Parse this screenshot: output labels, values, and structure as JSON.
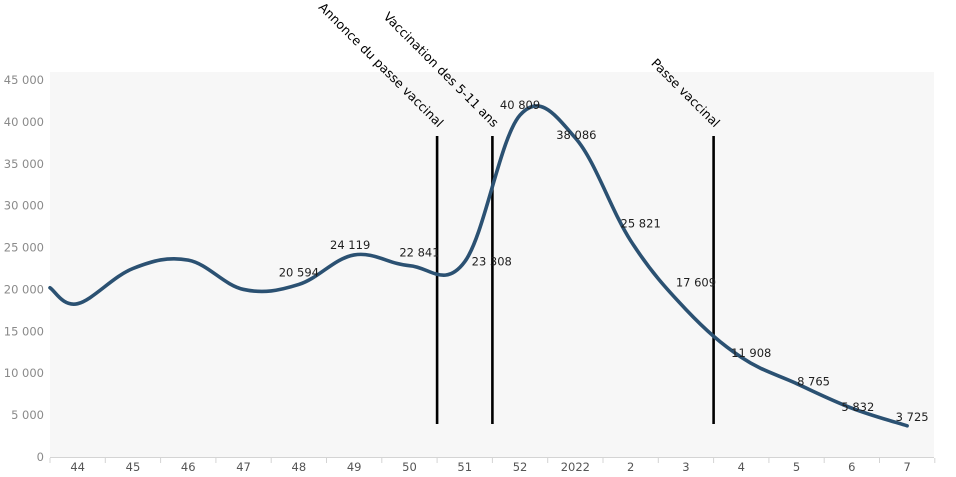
{
  "chart_data": {
    "type": "line",
    "title": "",
    "xlabel": "",
    "ylabel": "",
    "categories": [
      "44",
      "45",
      "46",
      "47",
      "48",
      "49",
      "50",
      "51",
      "52",
      "2022",
      "2",
      "3",
      "4",
      "5",
      "6",
      "7"
    ],
    "y_ticks": [
      "0",
      "5 000",
      "10 000",
      "15 000",
      "20 000",
      "25 000",
      "30 000",
      "35 000",
      "40 000",
      "45 000"
    ],
    "ylim": [
      0,
      45000
    ],
    "grid": false,
    "legend": "none",
    "line_color": "#2b5172",
    "series": [
      {
        "points": [
          {
            "x": 43.5,
            "y": 20200
          },
          {
            "x": 44.0,
            "y": 18300
          },
          {
            "x": 45.0,
            "y": 22500
          },
          {
            "x": 46.0,
            "y": 23500
          },
          {
            "x": 47.0,
            "y": 20000
          },
          {
            "x": 48.0,
            "y": 20594,
            "label": "20 594"
          },
          {
            "x": 49.0,
            "y": 24119,
            "label": "24 119"
          },
          {
            "x": 50.0,
            "y": 22841,
            "label": "22 841"
          },
          {
            "x": 51.0,
            "y": 23308,
            "label": "23 308"
          },
          {
            "x": 52.0,
            "y": 40809,
            "label": "40 809"
          },
          {
            "x": 2022,
            "y": 38086,
            "label": "38 086"
          },
          {
            "x": 2,
            "y": 25821,
            "label": "25 821"
          },
          {
            "x": 3,
            "y": 17609,
            "label": "17 609"
          },
          {
            "x": 4,
            "y": 11908,
            "label": "11 908"
          },
          {
            "x": 5,
            "y": 8765,
            "label": "8 765"
          },
          {
            "x": 6,
            "y": 5832,
            "label": "5 832"
          },
          {
            "x": 7,
            "y": 3725,
            "label": "3 725"
          }
        ]
      }
    ],
    "annotations": [
      {
        "text": "Annonce du passe vaccinal",
        "between": [
          "50",
          "51"
        ]
      },
      {
        "text": "Vaccination des 5-11 ans",
        "between": [
          "51",
          "52"
        ]
      },
      {
        "text": "Passe vaccinal",
        "between": [
          "3",
          "4"
        ]
      }
    ]
  }
}
